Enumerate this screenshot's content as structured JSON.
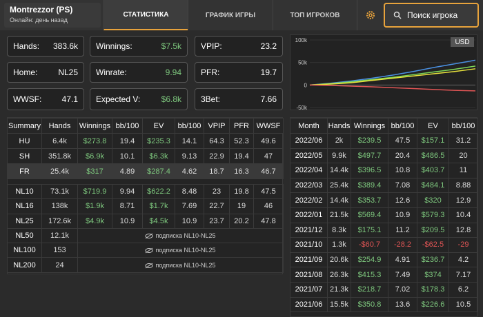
{
  "header": {
    "player": "Montrezzor (PS)",
    "status": "Онлайн: день назад",
    "tabs": [
      "СТАТИСТИКА",
      "ГРАФИК ИГРЫ",
      "ТОП ИГРОКОВ"
    ],
    "search": "Поиск игрока"
  },
  "stats": [
    {
      "label": "Hands:",
      "value": "383.6k"
    },
    {
      "label": "Winnings:",
      "value": "$7.5k"
    },
    {
      "label": "VPIP:",
      "value": "23.2"
    },
    {
      "label": "Home:",
      "value": "NL25"
    },
    {
      "label": "Winrate:",
      "value": "9.94"
    },
    {
      "label": "PFR:",
      "value": "19.7"
    },
    {
      "label": "WWSF:",
      "value": "47.1"
    },
    {
      "label": "Expected V:",
      "value": "$6.8k"
    },
    {
      "label": "3Bet:",
      "value": "7.66"
    }
  ],
  "graph": {
    "type": "line",
    "badge": "USD",
    "ylim": [
      -50000,
      100000
    ],
    "yticks": [
      {
        "value": 100000,
        "label": "100k"
      },
      {
        "value": 50000,
        "label": "50k"
      },
      0,
      {
        "value": -50000,
        "label": "-50k"
      }
    ],
    "series": [
      {
        "color": "#4a90e2",
        "values": [
          0,
          4000,
          9000,
          15000,
          22000,
          30000,
          39000,
          47000,
          55000
        ]
      },
      {
        "color": "#7ed957",
        "values": [
          0,
          3000,
          7000,
          12000,
          17000,
          23000,
          29000,
          35000,
          42000
        ]
      },
      {
        "color": "#e8e23c",
        "values": [
          0,
          2000,
          5000,
          10000,
          15000,
          20000,
          25000,
          30000,
          36000
        ]
      },
      {
        "color": "#e05555",
        "values": [
          0,
          -1000,
          -2500,
          -4000,
          -6000,
          -8000,
          -10000,
          -12000,
          -13000
        ]
      }
    ]
  },
  "summary_table": {
    "columns": [
      "Summary",
      "Hands",
      "Winnings",
      "bb/100",
      "EV",
      "bb/100",
      "VPIP",
      "PFR",
      "WWSF"
    ],
    "groups": [
      [
        [
          "HU",
          "6.4k",
          "$273.8",
          "19.4",
          "$235.3",
          "14.1",
          "64.3",
          "52.3",
          "49.6"
        ],
        [
          "SH",
          "351.8k",
          "$6.9k",
          "10.1",
          "$6.3k",
          "9.13",
          "22.9",
          "19.4",
          "47"
        ],
        [
          "FR",
          "25.4k",
          "$317",
          "4.89",
          "$287.4",
          "4.62",
          "18.7",
          "16.3",
          "46.7"
        ]
      ],
      [
        [
          "NL10",
          "73.1k",
          "$719.9",
          "9.94",
          "$622.2",
          "8.48",
          "23",
          "19.8",
          "47.5"
        ],
        [
          "NL16",
          "138k",
          "$1.9k",
          "8.71",
          "$1.7k",
          "7.69",
          "22.7",
          "19",
          "46"
        ],
        [
          "NL25",
          "172.6k",
          "$4.9k",
          "10.9",
          "$4.5k",
          "10.9",
          "23.7",
          "20.2",
          "47.8"
        ],
        [
          "NL50",
          "12.1k",
          "подписка NL10-NL25"
        ],
        [
          "NL100",
          "153",
          "подписка NL10-NL25"
        ],
        [
          "NL200",
          "24",
          "подписка NL10-NL25"
        ]
      ]
    ]
  },
  "monthly_table": {
    "columns": [
      "Month",
      "Hands",
      "Winnings",
      "bb/100",
      "EV",
      "bb/100"
    ],
    "rows": [
      [
        "2022/06",
        "2k",
        "$239.5",
        "47.5",
        "$157.1",
        "31.2"
      ],
      [
        "2022/05",
        "9.9k",
        "$497.7",
        "20.4",
        "$486.5",
        "20"
      ],
      [
        "2022/04",
        "14.4k",
        "$396.5",
        "10.8",
        "$403.7",
        "11"
      ],
      [
        "2022/03",
        "25.4k",
        "$389.4",
        "7.08",
        "$484.1",
        "8.88"
      ],
      [
        "2022/02",
        "14.4k",
        "$353.7",
        "12.6",
        "$320",
        "12.9"
      ],
      [
        "2022/01",
        "21.5k",
        "$569.4",
        "10.9",
        "$579.3",
        "10.4"
      ],
      [
        "2021/12",
        "8.3k",
        "$175.1",
        "11.2",
        "$209.5",
        "12.8"
      ],
      [
        "2021/10",
        "1.3k",
        "-$60.7",
        "-28.2",
        "-$62.5",
        "-29"
      ],
      [
        "2021/09",
        "20.6k",
        "$254.9",
        "4.91",
        "$236.7",
        "4.2"
      ],
      [
        "2021/08",
        "26.3k",
        "$415.3",
        "7.49",
        "$374",
        "7.17"
      ],
      [
        "2021/07",
        "21.3k",
        "$218.7",
        "7.02",
        "$178.3",
        "6.2"
      ],
      [
        "2021/06",
        "15.5k",
        "$350.8",
        "13.6",
        "$226.6",
        "10.5"
      ]
    ]
  }
}
